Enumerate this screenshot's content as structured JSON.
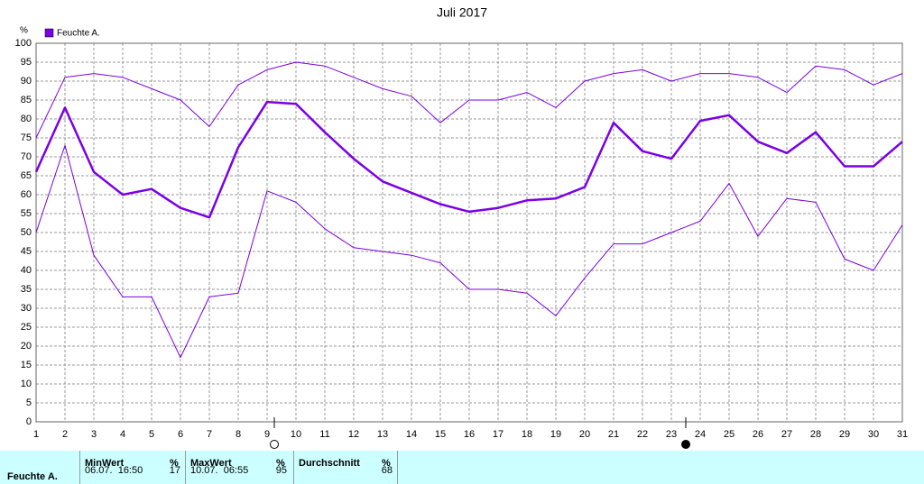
{
  "chart_data": {
    "type": "line",
    "title": "Juli 2017",
    "y_label": "%",
    "legend": "Feuchte A.",
    "x": [
      1,
      2,
      3,
      4,
      5,
      6,
      7,
      8,
      9,
      10,
      11,
      12,
      13,
      14,
      15,
      16,
      17,
      18,
      19,
      20,
      21,
      22,
      23,
      24,
      25,
      26,
      27,
      28,
      29,
      30,
      31
    ],
    "series": [
      {
        "color": "#7a00e6",
        "width": 1,
        "values": [
          75,
          91,
          92,
          91,
          88,
          85,
          78,
          89,
          93,
          95,
          94,
          91,
          88,
          86,
          79,
          85,
          85,
          87,
          83,
          90,
          92,
          93,
          90,
          92,
          92,
          91,
          87,
          94,
          93,
          89,
          92
        ]
      },
      {
        "color": "#7a00e6",
        "width": 2.5,
        "values": [
          66,
          83,
          66,
          60,
          61.5,
          56.5,
          54,
          72.5,
          84.5,
          84,
          76.5,
          69.5,
          63.5,
          60.5,
          57.5,
          55.5,
          56.5,
          58.5,
          59,
          62,
          79,
          71.5,
          69.5,
          79.5,
          81,
          74,
          71,
          76.5,
          67.5,
          67.5,
          74
        ]
      },
      {
        "color": "#7a00e6",
        "width": 1,
        "values": [
          50,
          73,
          44,
          33,
          33,
          17,
          33,
          34,
          61,
          58,
          51,
          46,
          45,
          44,
          42,
          35,
          35,
          34,
          28,
          38,
          47,
          47,
          50,
          53,
          63,
          49,
          59,
          58,
          43,
          40,
          52
        ]
      }
    ],
    "xlim": [
      1,
      31
    ],
    "xticks": [
      1,
      2,
      3,
      4,
      5,
      6,
      7,
      8,
      9,
      10,
      11,
      12,
      13,
      14,
      15,
      16,
      17,
      18,
      19,
      20,
      21,
      22,
      23,
      24,
      25,
      26,
      27,
      28,
      29,
      30,
      31
    ],
    "ylim": [
      0,
      100
    ],
    "yticks": [
      0,
      5,
      10,
      15,
      20,
      25,
      30,
      35,
      40,
      45,
      50,
      55,
      60,
      65,
      70,
      75,
      80,
      85,
      90,
      95,
      100
    ],
    "grid": true,
    "events": [
      {
        "x": 9.25,
        "filled": false
      },
      {
        "x": 23.5,
        "filled": true
      }
    ]
  },
  "table": {
    "headers": [
      [
        "MinWert",
        "%"
      ],
      [
        "MaxWert",
        "%"
      ],
      [
        "Durchschnitt",
        "%"
      ]
    ],
    "rows": [
      {
        "label": "Feuchte A.",
        "cells": [
          [
            "06.07.  16:50",
            "17"
          ],
          [
            "10.07.  06:55",
            "95"
          ],
          [
            "68"
          ]
        ]
      }
    ]
  }
}
